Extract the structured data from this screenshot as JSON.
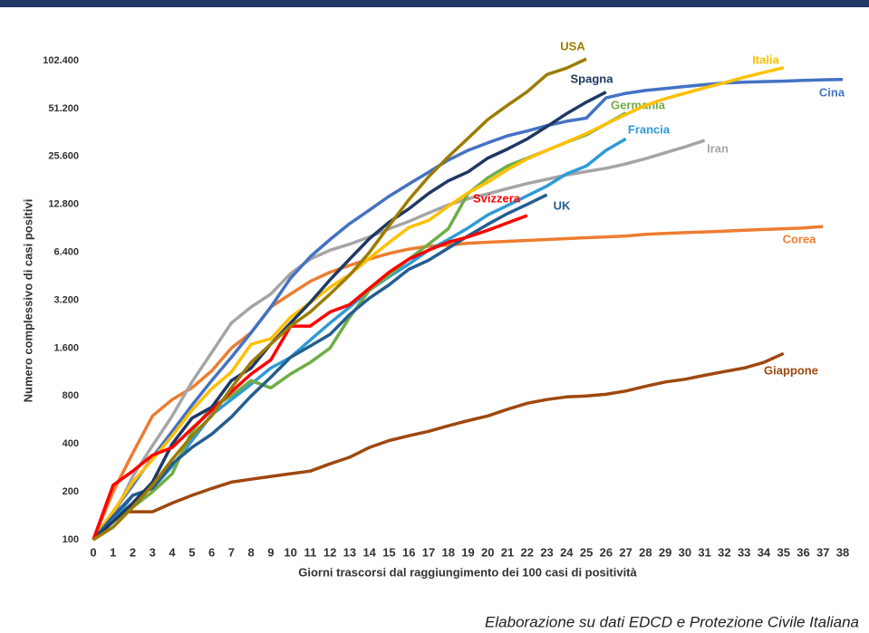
{
  "chart_data": {
    "type": "line",
    "xlabel": "Giorni trascorsi dal raggiungimento dei 100 casi di positività",
    "ylabel": "Numero complessivo di casi positivi",
    "source": "Elaborazione su dati EDCD e Protezione Civile Italiana",
    "log_scale_y": true,
    "log_base": 2,
    "x": [
      0,
      1,
      2,
      3,
      4,
      5,
      6,
      7,
      8,
      9,
      10,
      11,
      12,
      13,
      14,
      15,
      16,
      17,
      18,
      19,
      20,
      21,
      22,
      23,
      24,
      25,
      26,
      27,
      28,
      29,
      30,
      31,
      32,
      33,
      34,
      35,
      36,
      37,
      38
    ],
    "xlim": [
      0,
      38
    ],
    "xticks": [
      0,
      1,
      2,
      3,
      4,
      5,
      6,
      7,
      8,
      9,
      10,
      11,
      12,
      13,
      14,
      15,
      16,
      17,
      18,
      19,
      20,
      21,
      22,
      23,
      24,
      25,
      26,
      27,
      28,
      29,
      30,
      31,
      32,
      33,
      34,
      35,
      36,
      37,
      38
    ],
    "ylim": [
      100,
      102400
    ],
    "yticks": [
      100,
      200,
      400,
      800,
      {
        "value": 1600,
        "label": "1.600"
      },
      {
        "value": 3200,
        "label": "3.200"
      },
      {
        "value": 6400,
        "label": "6.400"
      },
      {
        "value": 12800,
        "label": "12.800"
      },
      {
        "value": 25600,
        "label": "25.600"
      },
      {
        "value": 51200,
        "label": "51.200"
      },
      {
        "value": 102400,
        "label": "102.400"
      }
    ],
    "series": [
      {
        "name": "Giappone",
        "color": "#9e480e",
        "values": [
          100,
          150,
          150,
          150,
          170,
          190,
          210,
          230,
          240,
          250,
          260,
          270,
          300,
          330,
          380,
          420,
          450,
          480,
          520,
          560,
          600,
          660,
          720,
          760,
          790,
          800,
          820,
          860,
          920,
          980,
          1020,
          1080,
          1140,
          1200,
          1300,
          1480,
          null,
          null,
          null
        ]
      },
      {
        "name": "Corea",
        "color": "#ed7d31",
        "values": [
          100,
          200,
          350,
          600,
          760,
          900,
          1150,
          1600,
          2000,
          2900,
          3500,
          4200,
          4800,
          5300,
          5800,
          6300,
          6700,
          7000,
          7100,
          7300,
          7400,
          7500,
          7600,
          7700,
          7800,
          7900,
          8000,
          8100,
          8300,
          8400,
          8500,
          8600,
          8700,
          8800,
          8900,
          9000,
          9100,
          9300,
          null
        ]
      },
      {
        "name": "Iran",
        "color": "#a5a5a5",
        "values": [
          100,
          140,
          250,
          390,
          600,
          980,
          1500,
          2300,
          2900,
          3500,
          4700,
          5800,
          6600,
          7200,
          8000,
          9000,
          10000,
          11300,
          12700,
          13900,
          14900,
          16100,
          17300,
          18400,
          19600,
          20600,
          21600,
          23000,
          24800,
          27000,
          29400,
          32300,
          null,
          null,
          null,
          null,
          null,
          null,
          null
        ]
      },
      {
        "name": "Cina",
        "color": "#4472c4",
        "values": [
          100,
          150,
          220,
          330,
          480,
          700,
          1000,
          1400,
          2000,
          2900,
          4400,
          6000,
          7700,
          9700,
          11800,
          14400,
          17200,
          20400,
          24300,
          28000,
          31200,
          34500,
          37000,
          40000,
          42600,
          44600,
          59800,
          63800,
          66500,
          68500,
          70500,
          72400,
          74200,
          75100,
          75700,
          76200,
          77000,
          77700,
          78100
        ]
      },
      {
        "name": "Francia",
        "color": "#2e9bd6",
        "values": [
          100,
          130,
          190,
          210,
          290,
          420,
          610,
          760,
          950,
          1200,
          1400,
          1800,
          2300,
          2900,
          3700,
          4500,
          5400,
          6600,
          7700,
          9100,
          11000,
          12600,
          14500,
          16700,
          19900,
          22300,
          28000,
          33000,
          null,
          null,
          null,
          null,
          null,
          null,
          null,
          null,
          null,
          null,
          null
        ]
      },
      {
        "name": "Germania",
        "color": "#70ad47",
        "values": [
          100,
          130,
          160,
          200,
          260,
          480,
          680,
          800,
          1000,
          900,
          1100,
          1300,
          1600,
          2500,
          3700,
          4600,
          5800,
          7200,
          9000,
          15000,
          18800,
          22300,
          25000,
          28000,
          31500,
          35000,
          41000,
          48000,
          null,
          null,
          null,
          null,
          null,
          null,
          null,
          null,
          null,
          null,
          null
        ]
      },
      {
        "name": "Italia",
        "color": "#ffc000",
        "values": [
          100,
          150,
          230,
          320,
          450,
          650,
          890,
          1130,
          1690,
          1830,
          2500,
          3090,
          3860,
          4640,
          5880,
          7380,
          9170,
          10150,
          12460,
          15110,
          17660,
          21160,
          24750,
          27980,
          31510,
          35710,
          41040,
          47020,
          53580,
          59140,
          63930,
          69180,
          74390,
          80540,
          86500,
          92470,
          null,
          null,
          null
        ]
      },
      {
        "name": "UK",
        "color": "#255e91",
        "values": [
          100,
          140,
          190,
          210,
          300,
          380,
          460,
          590,
          800,
          1050,
          1400,
          1650,
          1950,
          2600,
          3300,
          4000,
          5000,
          5700,
          6800,
          8100,
          9600,
          11200,
          12800,
          14700,
          null,
          null,
          null,
          null,
          null,
          null,
          null,
          null,
          null,
          null,
          null,
          null,
          null,
          null,
          null
        ]
      },
      {
        "name": "Spagna",
        "color": "#1f3864",
        "values": [
          100,
          130,
          170,
          230,
          400,
          580,
          680,
          1000,
          1200,
          1700,
          2300,
          3100,
          4300,
          5800,
          7800,
          9900,
          12000,
          15000,
          18000,
          20500,
          25000,
          28500,
          33000,
          39500,
          47600,
          56200,
          65000,
          null,
          null,
          null,
          null,
          null,
          null,
          null,
          null,
          null,
          null,
          null,
          null
        ]
      },
      {
        "name": "Svizzera",
        "color": "#ff0000",
        "values": [
          100,
          220,
          270,
          340,
          380,
          500,
          650,
          850,
          1100,
          1350,
          2200,
          2200,
          2700,
          3000,
          3800,
          4800,
          5800,
          6600,
          7400,
          8000,
          8800,
          9800,
          10900,
          null,
          null,
          null,
          null,
          null,
          null,
          null,
          null,
          null,
          null,
          null,
          null,
          null,
          null,
          null,
          null
        ]
      },
      {
        "name": "USA",
        "color": "#9c7c00",
        "values": [
          100,
          120,
          160,
          220,
          320,
          450,
          600,
          900,
          1300,
          1700,
          2200,
          2700,
          3500,
          4600,
          6400,
          9400,
          13700,
          19100,
          25500,
          33300,
          43700,
          53700,
          65300,
          83800,
          92000,
          105000,
          null,
          null,
          null,
          null,
          null,
          null,
          null,
          null,
          null,
          null,
          null,
          null,
          null
        ]
      }
    ]
  }
}
